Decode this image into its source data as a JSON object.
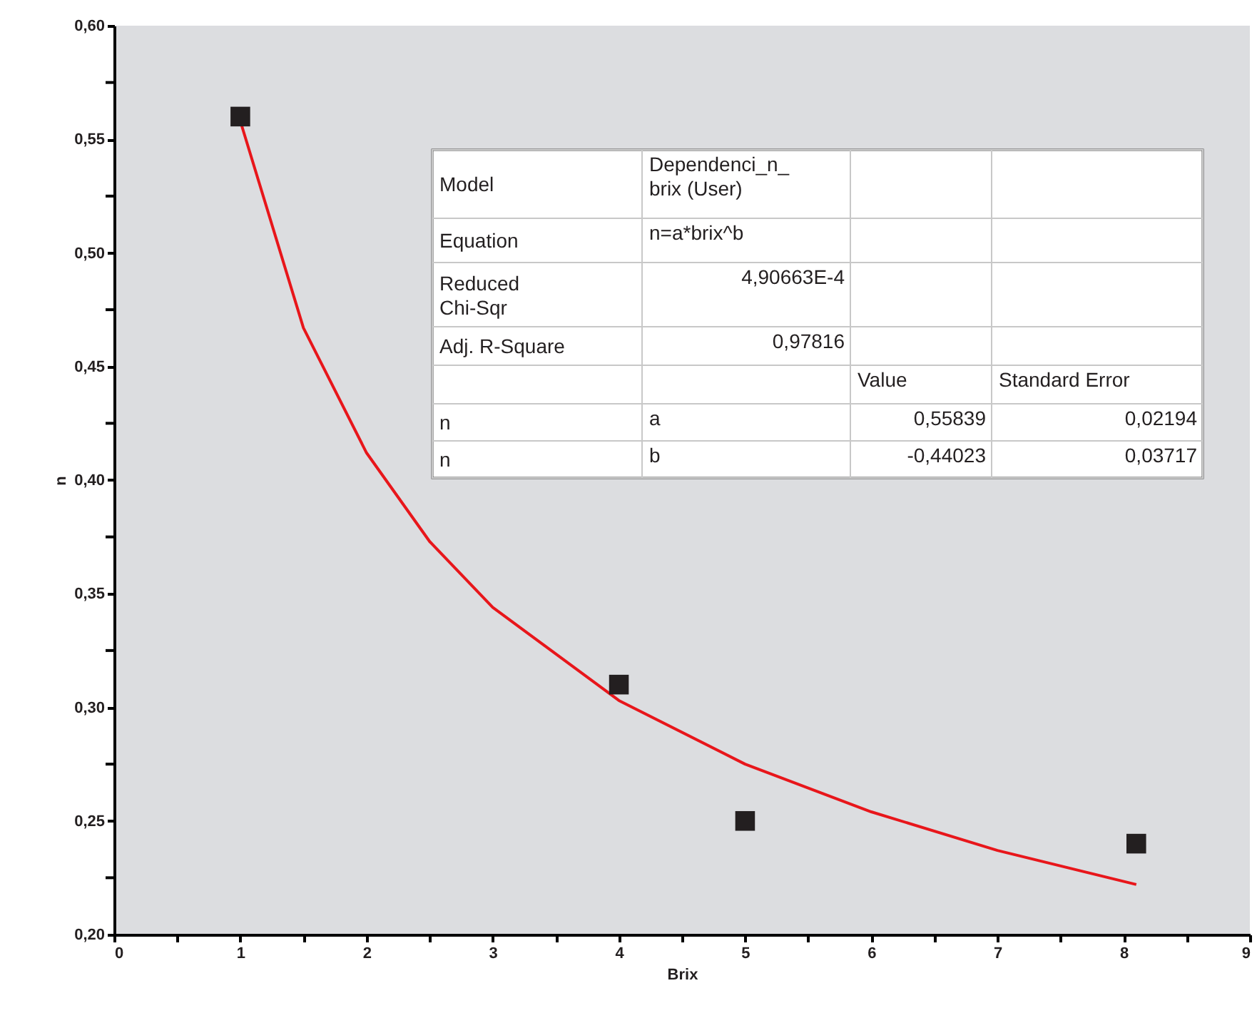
{
  "chart_data": {
    "type": "scatter",
    "xlabel": "Brix",
    "ylabel": "n",
    "xlim": [
      0,
      9
    ],
    "ylim": [
      0.2,
      0.6
    ],
    "xticks": [
      0,
      {
        "value": 0.5,
        "label": null
      },
      1,
      {
        "value": 1.5,
        "label": null
      },
      2,
      {
        "value": 2.5,
        "label": null
      },
      3,
      {
        "value": 3.5,
        "label": null
      },
      4,
      {
        "value": 4.5,
        "label": null
      },
      5,
      {
        "value": 5.5,
        "label": null
      },
      6,
      {
        "value": 6.5,
        "label": null
      },
      7,
      {
        "value": 7.5,
        "label": null
      },
      8,
      {
        "value": 8.5,
        "label": null
      },
      9
    ],
    "yticks": [
      {
        "value": 0.2,
        "label": "0,20"
      },
      {
        "value": 0.225,
        "label": null
      },
      {
        "value": 0.25,
        "label": "0,25"
      },
      {
        "value": 0.275,
        "label": null
      },
      {
        "value": 0.3,
        "label": "0,30"
      },
      {
        "value": 0.325,
        "label": null
      },
      {
        "value": 0.35,
        "label": "0,35"
      },
      {
        "value": 0.375,
        "label": null
      },
      {
        "value": 0.4,
        "label": "0,40"
      },
      {
        "value": 0.425,
        "label": null
      },
      {
        "value": 0.45,
        "label": "0,45"
      },
      {
        "value": 0.475,
        "label": null
      },
      {
        "value": 0.5,
        "label": "0,50"
      },
      {
        "value": 0.525,
        "label": null
      },
      {
        "value": 0.55,
        "label": "0,55"
      },
      {
        "value": 0.575,
        "label": null
      },
      {
        "value": 0.6,
        "label": "0,60"
      }
    ],
    "grid": false,
    "series": [
      {
        "type": "scatter",
        "marker": "square",
        "color": "#231f20",
        "x": [
          1,
          4,
          5,
          8.1
        ],
        "values": [
          0.56,
          0.31,
          0.25,
          0.24
        ]
      },
      {
        "type": "line",
        "marker": "none",
        "line_style": "solid",
        "color": "#e8161b",
        "x": [
          1,
          1.5,
          2,
          2.5,
          3,
          4,
          5,
          6,
          7,
          8.1
        ],
        "values": [
          0.558,
          0.467,
          0.412,
          0.373,
          0.344,
          0.303,
          0.275,
          0.254,
          0.237,
          0.222
        ]
      }
    ],
    "annotations": [
      "Model",
      "Dependenci_n_\nbrix (User)",
      "Equation",
      "n=a*brix^b",
      "Reduced\nChi-Sqr",
      "4,90663E-4",
      "Adj. R-Square",
      "0,97816",
      "Value",
      "Standard Error",
      "n",
      "a",
      "0,55839",
      "0,02194",
      "n",
      "b",
      "-0,44023",
      "0,03717"
    ]
  }
}
